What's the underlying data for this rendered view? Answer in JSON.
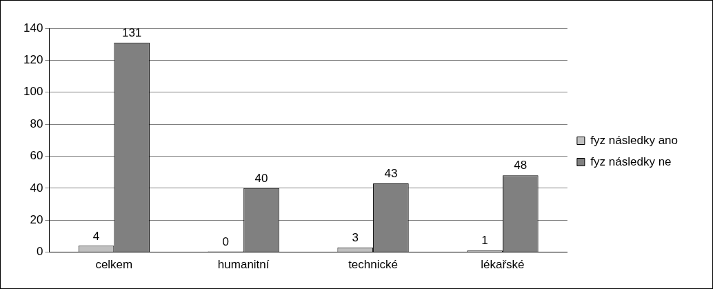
{
  "chart_data": {
    "type": "bar",
    "categories": [
      "celkem",
      "humanitní",
      "technické",
      "lékařské"
    ],
    "series": [
      {
        "name": "fyz následky ano",
        "color": "#c0c0c0",
        "values": [
          4,
          0,
          3,
          1
        ]
      },
      {
        "name": "fyz následky ne",
        "color": "#808080",
        "values": [
          131,
          40,
          43,
          48
        ]
      }
    ],
    "ylim": [
      0,
      140
    ],
    "yticks": [
      0,
      20,
      40,
      60,
      80,
      100,
      120,
      140
    ],
    "grid": "y",
    "legend": "right",
    "data_labels": true
  }
}
